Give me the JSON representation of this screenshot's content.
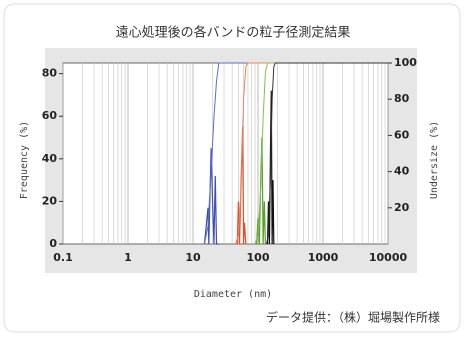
{
  "chart_data": {
    "type": "line",
    "title": "遠心処理後の各バンドの粒子径測定結果",
    "x_label": "Diameter (nm)",
    "y_label": "Frequency (%)",
    "y2_label": "Undersize (%)",
    "source": "データ提供：（株）堀場製作所様",
    "log_x": true,
    "grid": true,
    "xlim": [
      0.1,
      10000
    ],
    "xticks": [
      0.1,
      1,
      10,
      100,
      1000,
      10000
    ],
    "ylim": [
      0,
      85
    ],
    "yticks": [
      0,
      20,
      40,
      60,
      80
    ],
    "y2lim": [
      0,
      100
    ],
    "y2ticks": [
      20,
      40,
      60,
      80,
      100
    ],
    "series": [
      {
        "color": "#3a4fb0",
        "x": [
          15,
          17,
          17.5,
          19,
          20,
          21,
          22,
          23,
          25
        ],
        "values": [
          0,
          17,
          0,
          45,
          20,
          0,
          32,
          0,
          0
        ]
      },
      {
        "color": "#5a6fd0",
        "axis": "y2",
        "x": [
          15,
          17,
          19,
          21,
          23,
          25,
          10000
        ],
        "values": [
          0,
          10,
          40,
          70,
          90,
          100,
          100
        ]
      },
      {
        "color": "#e0502a",
        "x": [
          48,
          50,
          52,
          55,
          58,
          60,
          62,
          65
        ],
        "values": [
          0,
          20,
          0,
          30,
          55,
          0,
          10,
          0
        ]
      },
      {
        "color": "#f08060",
        "axis": "y2",
        "x": [
          45,
          50,
          55,
          60,
          65,
          70,
          10000
        ],
        "values": [
          0,
          5,
          30,
          80,
          98,
          100,
          100
        ]
      },
      {
        "color": "#5aa02a",
        "x": [
          95,
          100,
          105,
          110,
          115,
          120,
          125,
          130
        ],
        "values": [
          0,
          12,
          0,
          30,
          50,
          0,
          20,
          0
        ]
      },
      {
        "color": "#80c050",
        "axis": "y2",
        "x": [
          90,
          100,
          110,
          120,
          130,
          140,
          10000
        ],
        "values": [
          0,
          5,
          30,
          70,
          95,
          100,
          100
        ]
      },
      {
        "color": "#111111",
        "x": [
          140,
          145,
          150,
          155,
          160,
          165,
          170,
          175
        ],
        "values": [
          0,
          20,
          0,
          40,
          72,
          0,
          30,
          0
        ]
      },
      {
        "color": "#333333",
        "axis": "y2",
        "x": [
          135,
          145,
          155,
          165,
          175,
          185,
          10000
        ],
        "values": [
          0,
          5,
          35,
          80,
          98,
          100,
          100
        ]
      }
    ]
  }
}
